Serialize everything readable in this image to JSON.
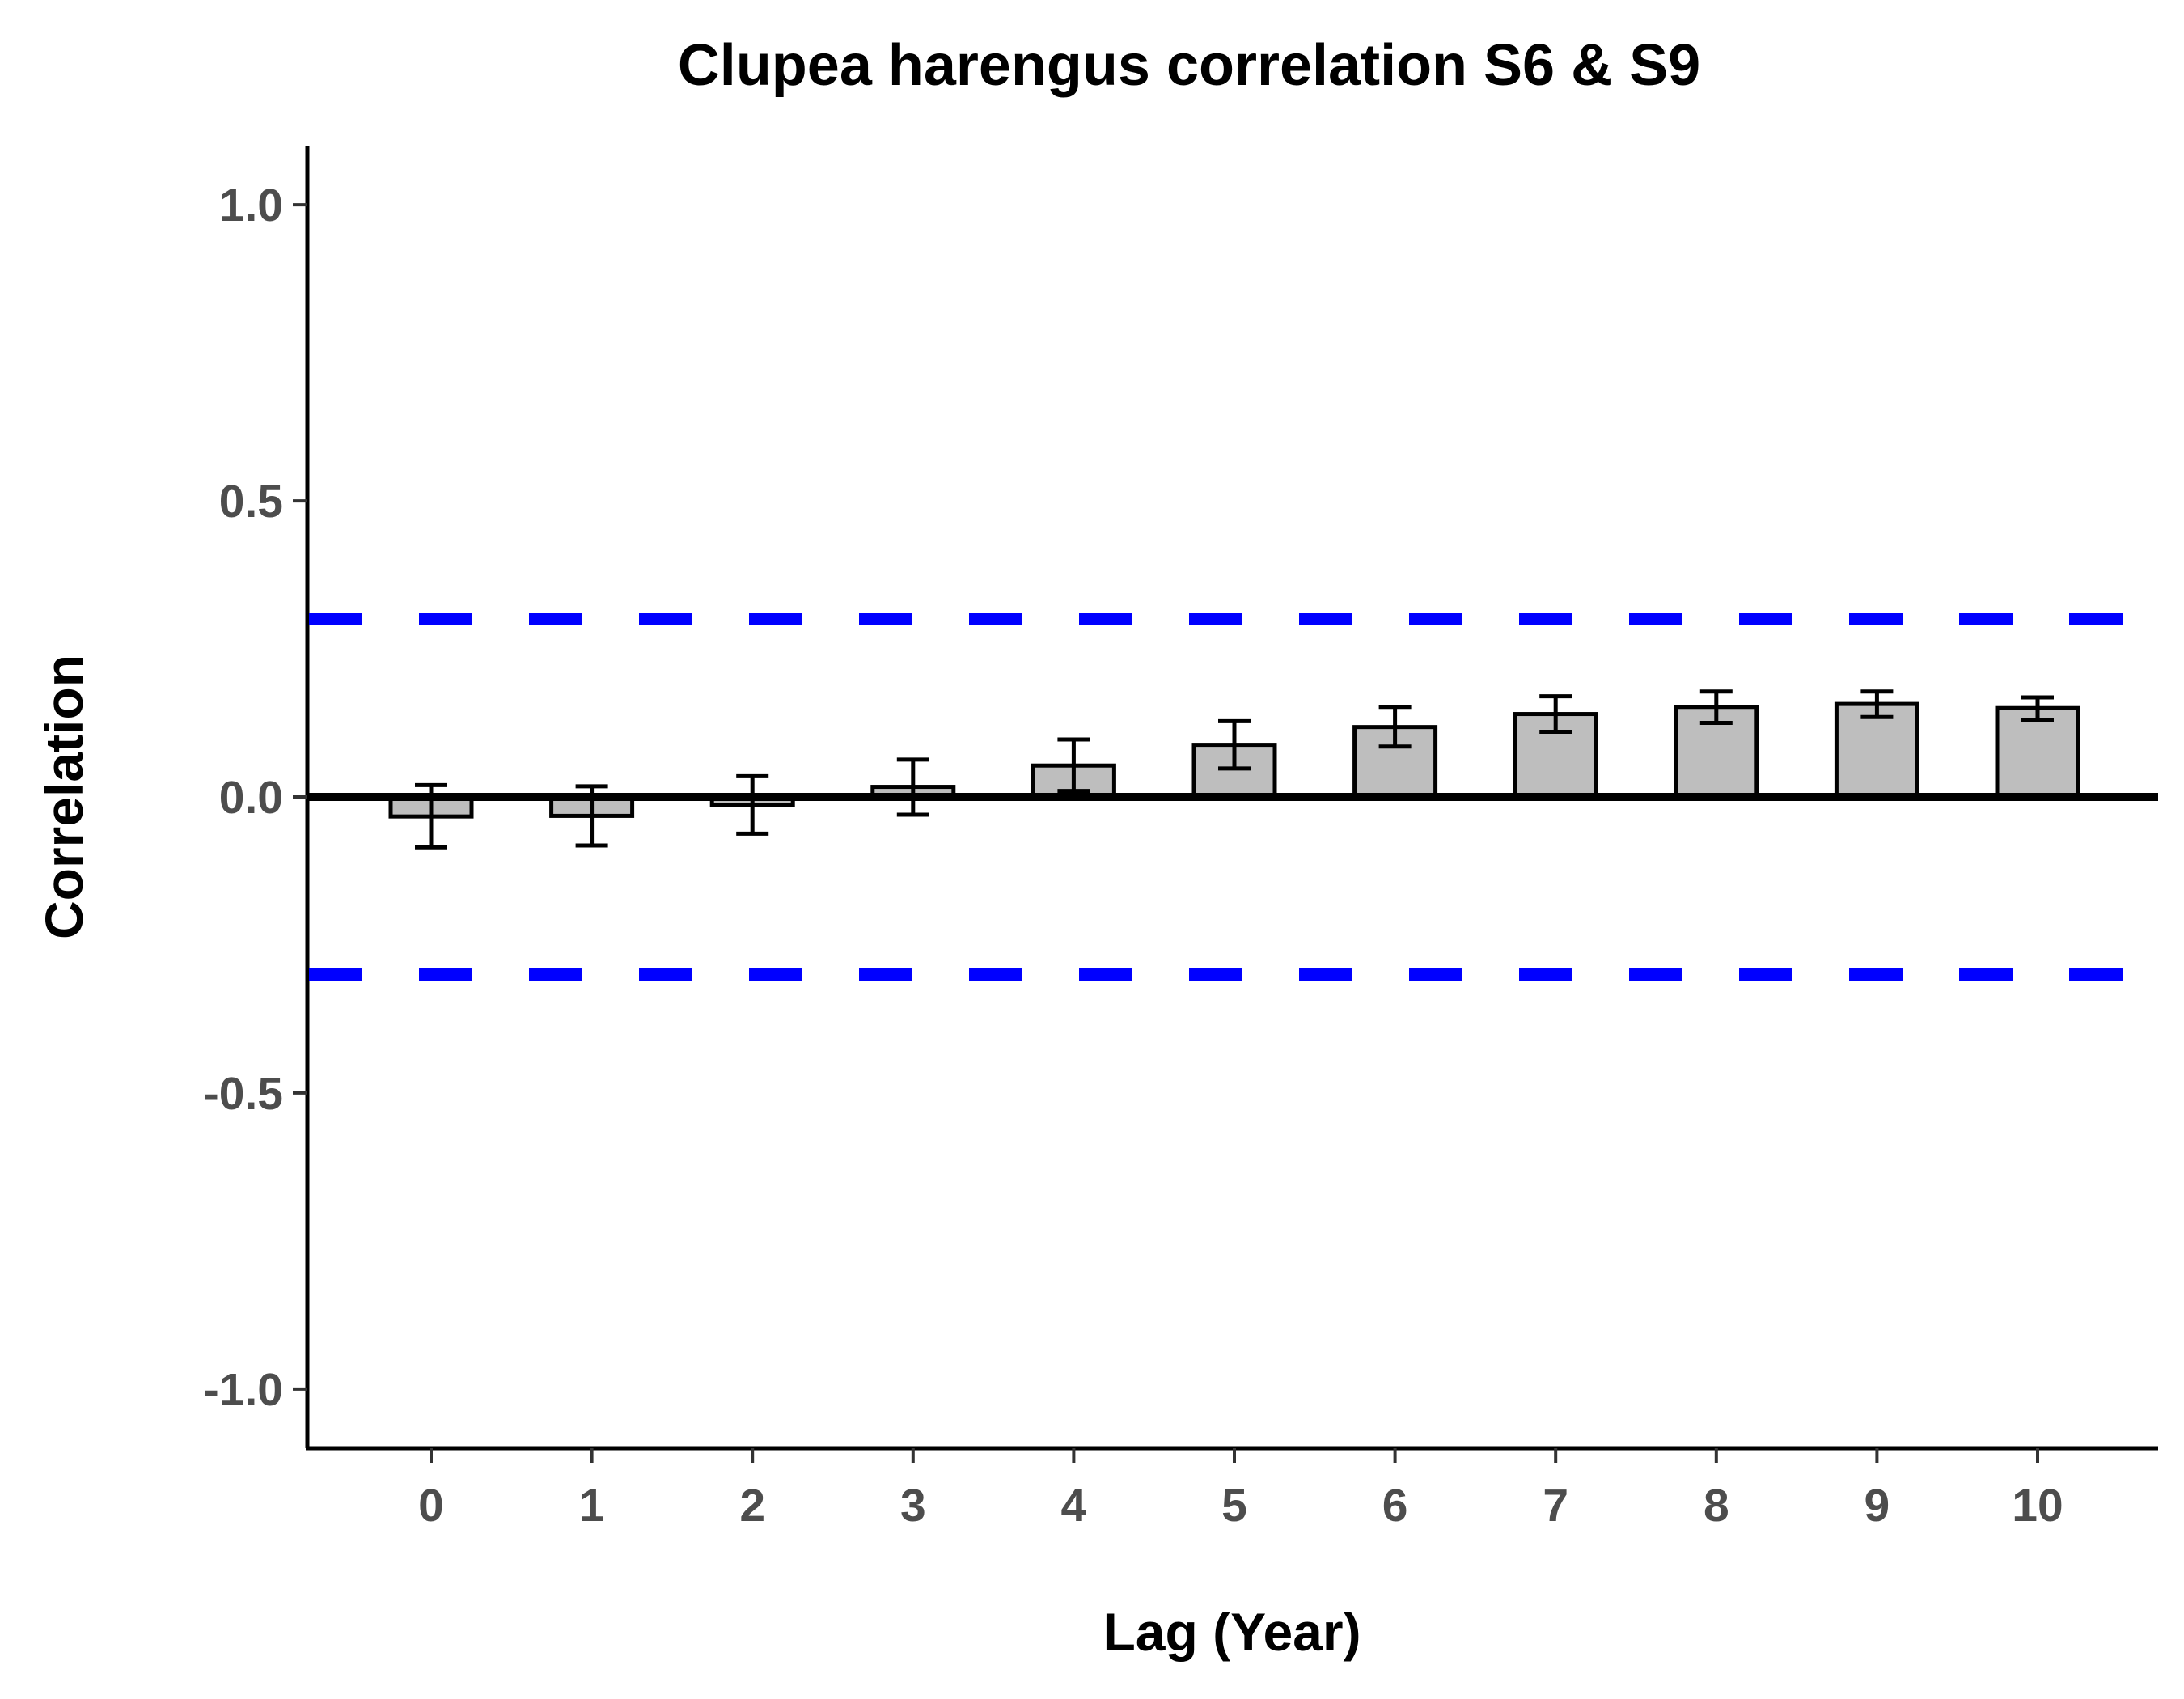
{
  "chart_data": {
    "type": "bar",
    "title": "Clupea harengus correlation S6 & S9",
    "xlabel": "Lag (Year)",
    "ylabel": "Correlation",
    "categories": [
      "0",
      "1",
      "2",
      "3",
      "4",
      "5",
      "6",
      "7",
      "8",
      "9",
      "10"
    ],
    "values": [
      -0.033,
      -0.032,
      -0.013,
      0.017,
      0.053,
      0.088,
      0.118,
      0.14,
      0.152,
      0.157,
      0.15
    ],
    "error_low": [
      -0.085,
      -0.082,
      -0.062,
      -0.03,
      0.01,
      0.048,
      0.085,
      0.11,
      0.125,
      0.135,
      0.13
    ],
    "error_high": [
      0.02,
      0.018,
      0.035,
      0.063,
      0.097,
      0.128,
      0.152,
      0.17,
      0.178,
      0.178,
      0.168
    ],
    "ylim": [
      -1.1,
      1.1
    ],
    "yticks": [
      -1.0,
      -0.5,
      0.0,
      0.5,
      1.0
    ],
    "ytick_labels": [
      "-1.0",
      "-0.5",
      "0.0",
      "0.5",
      "1.0"
    ],
    "reference_lines": [
      {
        "y": 0.3,
        "style": "dashed",
        "color": "#0000ff"
      },
      {
        "y": -0.3,
        "style": "dashed",
        "color": "#0000ff"
      },
      {
        "y": 0.0,
        "style": "solid",
        "color": "#000000"
      }
    ],
    "bar_color": "#bebebe",
    "bar_edge_color": "#000000",
    "grid": false,
    "legend": "none"
  }
}
